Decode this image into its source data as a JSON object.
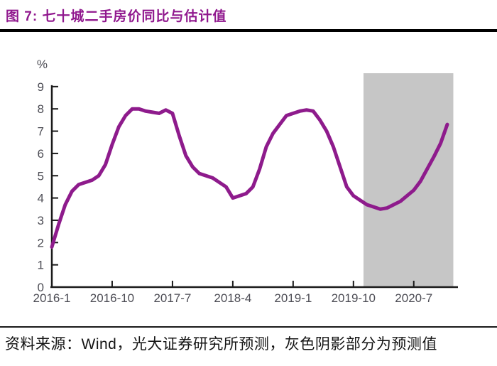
{
  "title": "图 7:  七十城二手房价同比与估计值",
  "source_note": "资料来源：Wind，光大证券研究所预测，灰色阴影部分为预测值",
  "colors": {
    "title": "#90188E",
    "axis": "#1A1A1A",
    "tick_label": "#4D4D55",
    "source_text": "#141414",
    "header_rule": "#000000",
    "footer_rule": "#1A1A1A"
  },
  "chart_data": {
    "type": "line",
    "title": "七十城二手房价同比与估计值",
    "ylabel": "%",
    "xlabel": "",
    "ylim": [
      0,
      9
    ],
    "y_ticks": [
      0,
      1,
      2,
      3,
      4,
      5,
      6,
      7,
      8,
      9
    ],
    "x_tick_labels": [
      "2016-1",
      "2016-10",
      "2017-7",
      "2018-4",
      "2019-1",
      "2019-10",
      "2020-7"
    ],
    "x_tick_positions": [
      0,
      9,
      18,
      27,
      36,
      45,
      54
    ],
    "grid": false,
    "legend_position": "none",
    "line_color": "#8E1B8C",
    "x": [
      "2016-1",
      "2016-2",
      "2016-3",
      "2016-4",
      "2016-5",
      "2016-6",
      "2016-7",
      "2016-8",
      "2016-9",
      "2016-10",
      "2016-11",
      "2016-12",
      "2017-1",
      "2017-2",
      "2017-3",
      "2017-4",
      "2017-5",
      "2017-6",
      "2017-7",
      "2017-8",
      "2017-9",
      "2017-10",
      "2017-11",
      "2017-12",
      "2018-1",
      "2018-2",
      "2018-3",
      "2018-4",
      "2018-5",
      "2018-6",
      "2018-7",
      "2018-8",
      "2018-9",
      "2018-10",
      "2018-11",
      "2018-12",
      "2019-1",
      "2019-2",
      "2019-3",
      "2019-4",
      "2019-5",
      "2019-6",
      "2019-7",
      "2019-8",
      "2019-9",
      "2019-10",
      "2019-11",
      "2019-12",
      "2020-1",
      "2020-2",
      "2020-3",
      "2020-4",
      "2020-5",
      "2020-6",
      "2020-7",
      "2020-8",
      "2020-9",
      "2020-10",
      "2020-11",
      "2020-12"
    ],
    "series": [
      {
        "name": "七十城二手房价同比与估计值（%）",
        "values": [
          1.8,
          2.8,
          3.7,
          4.3,
          4.6,
          4.7,
          4.8,
          5.0,
          5.5,
          6.4,
          7.2,
          7.7,
          8.0,
          8.0,
          7.9,
          7.85,
          7.8,
          7.95,
          7.8,
          6.8,
          5.9,
          5.4,
          5.1,
          5.0,
          4.9,
          4.7,
          4.5,
          4.0,
          4.1,
          4.2,
          4.5,
          5.3,
          6.3,
          6.9,
          7.3,
          7.7,
          7.8,
          7.9,
          7.95,
          7.9,
          7.5,
          7.0,
          6.3,
          5.4,
          4.5,
          4.1,
          3.9,
          3.7,
          3.6,
          3.5,
          3.55,
          3.7,
          3.85,
          4.1,
          4.35,
          4.75,
          5.3,
          5.85,
          6.45,
          7.3
        ]
      }
    ],
    "forecast_band": {
      "start_index": 46.5,
      "end_index": 59.9,
      "top_value": 9.6,
      "color": "#C6C6C6",
      "label": "灰色阴影部分为预测值"
    }
  }
}
